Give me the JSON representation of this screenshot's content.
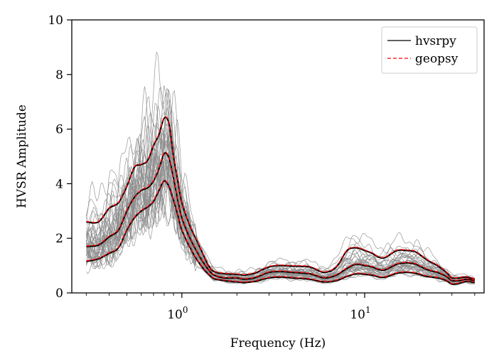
{
  "chart_data": {
    "type": "line",
    "xlabel": "Frequency (Hz)",
    "ylabel": "HVSR Amplitude",
    "xscale": "log",
    "xlim": [
      0.25,
      45
    ],
    "ylim": [
      0,
      10
    ],
    "y_ticks": [
      0,
      2,
      4,
      6,
      8,
      10
    ],
    "y_tick_labels": [
      "0",
      "2",
      "4",
      "6",
      "8",
      "10"
    ],
    "x_major_ticks": [
      1,
      10
    ],
    "x_tick_labels": [
      {
        "base": "10",
        "exp": "0"
      },
      {
        "base": "10",
        "exp": "1"
      }
    ],
    "x_minor_ticks": [
      0.3,
      0.4,
      0.5,
      0.6,
      0.7,
      0.8,
      0.9,
      2,
      3,
      4,
      5,
      6,
      7,
      8,
      9,
      20,
      30,
      40
    ],
    "grid": false,
    "legend": {
      "placement": "top-right",
      "entries": [
        {
          "label": "hvsrpy",
          "color": "#000000",
          "style": "solid"
        },
        {
          "label": "geopsy",
          "color": "#ff0000",
          "style": "dashed"
        }
      ]
    },
    "colors": {
      "individual_windows": "#8c8c8c",
      "hvsrpy": "#000000",
      "geopsy": "#ff0000"
    },
    "x": [
      0.3,
      0.35,
      0.4,
      0.45,
      0.5,
      0.55,
      0.6,
      0.65,
      0.7,
      0.75,
      0.8,
      0.85,
      0.9,
      0.95,
      1.0,
      1.1,
      1.2,
      1.3,
      1.4,
      1.5,
      1.7,
      2.0,
      2.2,
      2.5,
      3.0,
      3.5,
      4.0,
      5.0,
      6.0,
      7.0,
      8.0,
      9.0,
      10.0,
      11.0,
      12.0,
      13.0,
      15.0,
      17.0,
      19.0,
      22.0,
      25.0,
      28.0,
      30.0,
      33.0,
      36.0,
      40.0
    ],
    "series": [
      {
        "name": "hvsrpy",
        "role": "median",
        "values": [
          1.7,
          1.75,
          2.05,
          2.3,
          3.0,
          3.5,
          3.75,
          3.85,
          4.1,
          4.55,
          5.1,
          4.95,
          4.2,
          3.4,
          2.75,
          2.05,
          1.55,
          1.15,
          0.85,
          0.65,
          0.55,
          0.55,
          0.5,
          0.55,
          0.75,
          0.78,
          0.75,
          0.7,
          0.55,
          0.65,
          0.9,
          1.05,
          1.0,
          0.95,
          0.85,
          0.85,
          1.05,
          1.1,
          1.05,
          0.85,
          0.75,
          0.6,
          0.45,
          0.45,
          0.5,
          0.45
        ]
      },
      {
        "name": "hvsrpy",
        "role": "upper",
        "values": [
          2.6,
          2.6,
          3.1,
          3.3,
          3.9,
          4.6,
          4.7,
          4.85,
          5.4,
          5.8,
          6.4,
          6.2,
          5.0,
          4.1,
          3.3,
          2.5,
          1.95,
          1.45,
          1.0,
          0.78,
          0.7,
          0.68,
          0.65,
          0.72,
          0.95,
          1.0,
          0.98,
          0.95,
          0.75,
          0.95,
          1.55,
          1.65,
          1.55,
          1.45,
          1.3,
          1.3,
          1.55,
          1.55,
          1.5,
          1.2,
          1.0,
          0.75,
          0.55,
          0.55,
          0.58,
          0.5
        ]
      },
      {
        "name": "hvsrpy",
        "role": "lower",
        "values": [
          1.15,
          1.25,
          1.45,
          1.65,
          2.3,
          2.75,
          3.0,
          3.15,
          3.35,
          3.75,
          4.1,
          3.9,
          3.4,
          2.85,
          2.3,
          1.7,
          1.25,
          0.92,
          0.68,
          0.52,
          0.45,
          0.4,
          0.38,
          0.42,
          0.55,
          0.58,
          0.55,
          0.5,
          0.4,
          0.45,
          0.6,
          0.7,
          0.68,
          0.65,
          0.58,
          0.58,
          0.72,
          0.75,
          0.72,
          0.6,
          0.55,
          0.45,
          0.32,
          0.35,
          0.42,
          0.38
        ]
      },
      {
        "name": "geopsy",
        "role": "median",
        "values": [
          1.72,
          1.78,
          2.08,
          2.32,
          3.02,
          3.48,
          3.78,
          3.88,
          4.12,
          4.58,
          5.12,
          4.98,
          4.22,
          3.42,
          2.78,
          2.08,
          1.57,
          1.17,
          0.87,
          0.67,
          0.57,
          0.56,
          0.52,
          0.57,
          0.77,
          0.8,
          0.77,
          0.72,
          0.57,
          0.67,
          0.92,
          1.07,
          1.02,
          0.97,
          0.87,
          0.87,
          1.07,
          1.12,
          1.07,
          0.87,
          0.77,
          0.62,
          0.47,
          0.47,
          0.52,
          0.47
        ]
      },
      {
        "name": "geopsy",
        "role": "upper",
        "values": [
          2.62,
          2.62,
          3.12,
          3.32,
          3.92,
          4.62,
          4.72,
          4.87,
          5.42,
          5.82,
          6.42,
          6.22,
          5.02,
          4.12,
          3.32,
          2.52,
          1.97,
          1.47,
          1.02,
          0.8,
          0.72,
          0.7,
          0.67,
          0.74,
          0.97,
          1.02,
          1.0,
          0.97,
          0.77,
          0.97,
          1.57,
          1.67,
          1.57,
          1.47,
          1.32,
          1.32,
          1.57,
          1.57,
          1.52,
          1.22,
          1.02,
          0.77,
          0.57,
          0.57,
          0.6,
          0.52
        ]
      },
      {
        "name": "geopsy",
        "role": "lower",
        "values": [
          1.17,
          1.27,
          1.47,
          1.67,
          2.32,
          2.77,
          3.02,
          3.17,
          3.37,
          3.77,
          4.12,
          3.92,
          3.42,
          2.87,
          2.32,
          1.72,
          1.27,
          0.94,
          0.7,
          0.54,
          0.47,
          0.42,
          0.4,
          0.44,
          0.57,
          0.6,
          0.57,
          0.52,
          0.42,
          0.47,
          0.62,
          0.72,
          0.7,
          0.67,
          0.6,
          0.6,
          0.74,
          0.77,
          0.74,
          0.62,
          0.57,
          0.47,
          0.34,
          0.37,
          0.44,
          0.4
        ]
      }
    ],
    "individual_windows": {
      "count": 40,
      "peak_range": [
        3.5,
        9.3
      ]
    }
  }
}
